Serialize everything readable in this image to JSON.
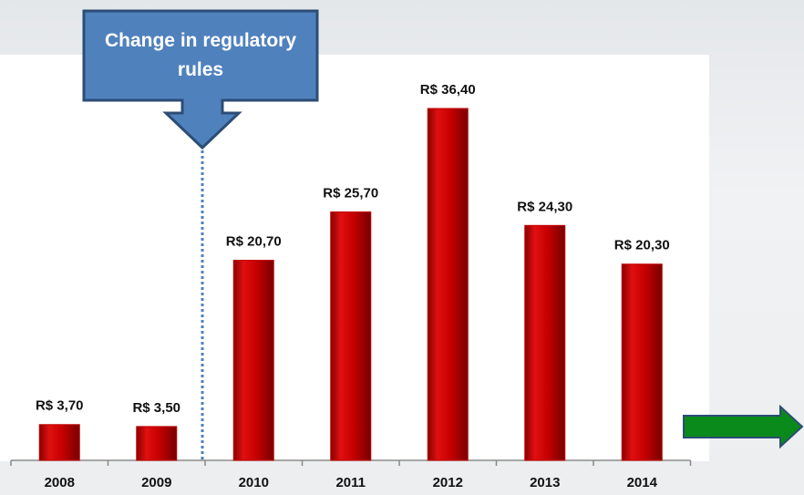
{
  "chart_data": {
    "type": "bar",
    "annotation": "Change in regulatory rules",
    "categories": [
      "2008",
      "2009",
      "2010",
      "2011",
      "2012",
      "2013",
      "2014"
    ],
    "values": [
      3.7,
      3.5,
      20.7,
      25.7,
      36.4,
      24.3,
      20.3
    ],
    "value_labels": [
      "R$ 3,70",
      "R$ 3,50",
      "R$ 20,70",
      "R$ 25,70",
      "R$ 36,40",
      "R$ 24,30",
      "R$ 20,30"
    ],
    "color": "#c00000"
  }
}
